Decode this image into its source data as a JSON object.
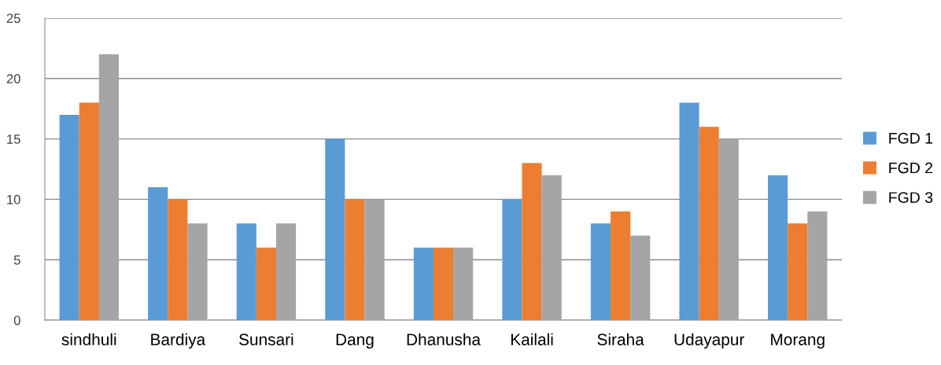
{
  "chart_data": {
    "type": "bar",
    "categories": [
      "sindhuli",
      "Bardiya",
      "Sunsari",
      "Dang",
      "Dhanusha",
      "Kailali",
      "Siraha",
      "Udayapur",
      "Morang"
    ],
    "series": [
      {
        "name": "FGD 1",
        "color": "#5b9bd5",
        "values": [
          17,
          11,
          8,
          15,
          6,
          10,
          8,
          18,
          12
        ]
      },
      {
        "name": "FGD 2",
        "color": "#ed7d31",
        "values": [
          18,
          10,
          6,
          10,
          6,
          13,
          9,
          16,
          8
        ]
      },
      {
        "name": "FGD 3",
        "color": "#a5a5a5",
        "values": [
          22,
          8,
          8,
          10,
          6,
          12,
          7,
          15,
          9
        ]
      }
    ],
    "ylim": [
      0,
      25
    ],
    "yticks": [
      0,
      5,
      10,
      15,
      20,
      25
    ],
    "grid": "y",
    "legend": "right"
  }
}
